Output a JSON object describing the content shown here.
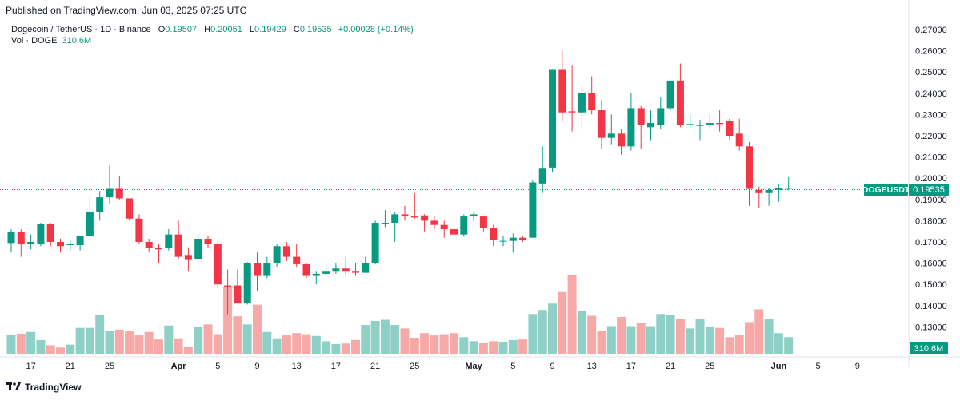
{
  "publish_line": "Published on TradingView.com, Jun 03, 2025 07:25 UTC",
  "legend": {
    "symbol": "Dogecoin / TetherUS · 1D · Binance",
    "o_label": "O",
    "o_value": "0.19507",
    "h_label": "H",
    "h_value": "0.20051",
    "l_label": "L",
    "l_value": "0.19429",
    "c_label": "C",
    "c_value": "0.19535",
    "change": "+0.00028 (+0.14%)",
    "vol_label": "Vol · DOGE",
    "vol_value": "310.6M"
  },
  "price_tag": {
    "symbol": "DOGEUSDT",
    "price": "0.19535"
  },
  "volume_tag": "310.6M",
  "footer": {
    "brand": "TradingView"
  },
  "colors": {
    "up": "#089981",
    "down": "#f23645",
    "vol_up": "#8fd0c6",
    "vol_down": "#f7a9a7"
  },
  "chart_data": {
    "type": "candlestick",
    "symbol": "DOGEUSDT",
    "y_ticks": [
      "0.27000",
      "0.26000",
      "0.25000",
      "0.24000",
      "0.23000",
      "0.22000",
      "0.21000",
      "0.20000",
      "0.19000",
      "0.18000",
      "0.17000",
      "0.16000",
      "0.15000",
      "0.14000",
      "0.13000"
    ],
    "x_ticks": [
      "17",
      "21",
      "25",
      "Apr",
      "5",
      "9",
      "13",
      "17",
      "21",
      "25",
      "May",
      "5",
      "9",
      "13",
      "17",
      "21",
      "25",
      "Jun",
      "5",
      "9"
    ],
    "ylim": [
      0.1207,
      0.2725
    ],
    "start_date": "2025-03-15",
    "candles": [
      {
        "o": 0.1695,
        "h": 0.176,
        "l": 0.165,
        "c": 0.1745
      },
      {
        "o": 0.1745,
        "h": 0.176,
        "l": 0.163,
        "c": 0.169
      },
      {
        "o": 0.169,
        "h": 0.1735,
        "l": 0.1665,
        "c": 0.17
      },
      {
        "o": 0.169,
        "h": 0.179,
        "l": 0.168,
        "c": 0.1785
      },
      {
        "o": 0.1785,
        "h": 0.179,
        "l": 0.168,
        "c": 0.17
      },
      {
        "o": 0.17,
        "h": 0.1715,
        "l": 0.165,
        "c": 0.168
      },
      {
        "o": 0.1685,
        "h": 0.171,
        "l": 0.166,
        "c": 0.169
      },
      {
        "o": 0.1685,
        "h": 0.173,
        "l": 0.166,
        "c": 0.173
      },
      {
        "o": 0.173,
        "h": 0.191,
        "l": 0.173,
        "c": 0.184
      },
      {
        "o": 0.184,
        "h": 0.194,
        "l": 0.18,
        "c": 0.191
      },
      {
        "o": 0.191,
        "h": 0.206,
        "l": 0.188,
        "c": 0.195
      },
      {
        "o": 0.195,
        "h": 0.201,
        "l": 0.19,
        "c": 0.1905
      },
      {
        "o": 0.1905,
        "h": 0.1905,
        "l": 0.1805,
        "c": 0.181
      },
      {
        "o": 0.181,
        "h": 0.183,
        "l": 0.169,
        "c": 0.17
      },
      {
        "o": 0.17,
        "h": 0.1715,
        "l": 0.165,
        "c": 0.167
      },
      {
        "o": 0.167,
        "h": 0.169,
        "l": 0.16,
        "c": 0.1665
      },
      {
        "o": 0.167,
        "h": 0.176,
        "l": 0.166,
        "c": 0.1735
      },
      {
        "o": 0.1735,
        "h": 0.18,
        "l": 0.162,
        "c": 0.163
      },
      {
        "o": 0.1635,
        "h": 0.1675,
        "l": 0.156,
        "c": 0.1615
      },
      {
        "o": 0.162,
        "h": 0.173,
        "l": 0.162,
        "c": 0.1715
      },
      {
        "o": 0.1715,
        "h": 0.173,
        "l": 0.167,
        "c": 0.169
      },
      {
        "o": 0.169,
        "h": 0.17,
        "l": 0.148,
        "c": 0.15
      },
      {
        "o": 0.1495,
        "h": 0.157,
        "l": 0.136,
        "c": 0.149
      },
      {
        "o": 0.1495,
        "h": 0.157,
        "l": 0.142,
        "c": 0.141
      },
      {
        "o": 0.141,
        "h": 0.1605,
        "l": 0.1405,
        "c": 0.16
      },
      {
        "o": 0.16,
        "h": 0.165,
        "l": 0.147,
        "c": 0.154
      },
      {
        "o": 0.154,
        "h": 0.163,
        "l": 0.153,
        "c": 0.16
      },
      {
        "o": 0.16,
        "h": 0.169,
        "l": 0.158,
        "c": 0.168
      },
      {
        "o": 0.168,
        "h": 0.17,
        "l": 0.161,
        "c": 0.163
      },
      {
        "o": 0.163,
        "h": 0.169,
        "l": 0.158,
        "c": 0.1595
      },
      {
        "o": 0.1595,
        "h": 0.16,
        "l": 0.153,
        "c": 0.154
      },
      {
        "o": 0.154,
        "h": 0.156,
        "l": 0.15,
        "c": 0.155
      },
      {
        "o": 0.155,
        "h": 0.16,
        "l": 0.1545,
        "c": 0.156
      },
      {
        "o": 0.156,
        "h": 0.16,
        "l": 0.155,
        "c": 0.1575
      },
      {
        "o": 0.1575,
        "h": 0.163,
        "l": 0.154,
        "c": 0.156
      },
      {
        "o": 0.156,
        "h": 0.16,
        "l": 0.154,
        "c": 0.1555
      },
      {
        "o": 0.1555,
        "h": 0.163,
        "l": 0.1555,
        "c": 0.16
      },
      {
        "o": 0.16,
        "h": 0.18,
        "l": 0.1595,
        "c": 0.179
      },
      {
        "o": 0.1785,
        "h": 0.185,
        "l": 0.177,
        "c": 0.179
      },
      {
        "o": 0.179,
        "h": 0.184,
        "l": 0.17,
        "c": 0.183
      },
      {
        "o": 0.183,
        "h": 0.187,
        "l": 0.18,
        "c": 0.182
      },
      {
        "o": 0.182,
        "h": 0.193,
        "l": 0.181,
        "c": 0.1815
      },
      {
        "o": 0.1825,
        "h": 0.183,
        "l": 0.175,
        "c": 0.18
      },
      {
        "o": 0.18,
        "h": 0.182,
        "l": 0.176,
        "c": 0.178
      },
      {
        "o": 0.178,
        "h": 0.18,
        "l": 0.172,
        "c": 0.176
      },
      {
        "o": 0.176,
        "h": 0.178,
        "l": 0.167,
        "c": 0.1735
      },
      {
        "o": 0.1735,
        "h": 0.183,
        "l": 0.1725,
        "c": 0.182
      },
      {
        "o": 0.182,
        "h": 0.184,
        "l": 0.18,
        "c": 0.183
      },
      {
        "o": 0.182,
        "h": 0.1825,
        "l": 0.175,
        "c": 0.1765
      },
      {
        "o": 0.1765,
        "h": 0.178,
        "l": 0.168,
        "c": 0.171
      },
      {
        "o": 0.1705,
        "h": 0.173,
        "l": 0.168,
        "c": 0.1705
      },
      {
        "o": 0.1705,
        "h": 0.174,
        "l": 0.165,
        "c": 0.172
      },
      {
        "o": 0.172,
        "h": 0.173,
        "l": 0.17,
        "c": 0.171
      },
      {
        "o": 0.172,
        "h": 0.199,
        "l": 0.172,
        "c": 0.198
      },
      {
        "o": 0.1975,
        "h": 0.215,
        "l": 0.193,
        "c": 0.2045
      },
      {
        "o": 0.205,
        "h": 0.251,
        "l": 0.203,
        "c": 0.251
      },
      {
        "o": 0.251,
        "h": 0.26,
        "l": 0.227,
        "c": 0.231
      },
      {
        "o": 0.2315,
        "h": 0.253,
        "l": 0.222,
        "c": 0.231
      },
      {
        "o": 0.231,
        "h": 0.244,
        "l": 0.223,
        "c": 0.24
      },
      {
        "o": 0.24,
        "h": 0.248,
        "l": 0.23,
        "c": 0.232
      },
      {
        "o": 0.232,
        "h": 0.237,
        "l": 0.214,
        "c": 0.219
      },
      {
        "o": 0.219,
        "h": 0.23,
        "l": 0.216,
        "c": 0.221
      },
      {
        "o": 0.221,
        "h": 0.223,
        "l": 0.211,
        "c": 0.215
      },
      {
        "o": 0.215,
        "h": 0.24,
        "l": 0.213,
        "c": 0.233
      },
      {
        "o": 0.233,
        "h": 0.234,
        "l": 0.214,
        "c": 0.225
      },
      {
        "o": 0.224,
        "h": 0.232,
        "l": 0.218,
        "c": 0.226
      },
      {
        "o": 0.225,
        "h": 0.238,
        "l": 0.223,
        "c": 0.233
      },
      {
        "o": 0.233,
        "h": 0.246,
        "l": 0.232,
        "c": 0.246
      },
      {
        "o": 0.246,
        "h": 0.254,
        "l": 0.224,
        "c": 0.225
      },
      {
        "o": 0.225,
        "h": 0.23,
        "l": 0.224,
        "c": 0.2255
      },
      {
        "o": 0.225,
        "h": 0.2275,
        "l": 0.218,
        "c": 0.225
      },
      {
        "o": 0.225,
        "h": 0.23,
        "l": 0.223,
        "c": 0.226
      },
      {
        "o": 0.226,
        "h": 0.232,
        "l": 0.222,
        "c": 0.2255
      },
      {
        "o": 0.227,
        "h": 0.228,
        "l": 0.218,
        "c": 0.22
      },
      {
        "o": 0.221,
        "h": 0.228,
        "l": 0.213,
        "c": 0.215
      },
      {
        "o": 0.215,
        "h": 0.217,
        "l": 0.187,
        "c": 0.195
      },
      {
        "o": 0.1945,
        "h": 0.196,
        "l": 0.186,
        "c": 0.193
      },
      {
        "o": 0.193,
        "h": 0.1955,
        "l": 0.187,
        "c": 0.1945
      },
      {
        "o": 0.1945,
        "h": 0.197,
        "l": 0.189,
        "c": 0.1955
      },
      {
        "o": 0.1951,
        "h": 0.2005,
        "l": 0.1943,
        "c": 0.1954
      }
    ],
    "volume": [
      34,
      36,
      39,
      25,
      16,
      12,
      17,
      46,
      46,
      69,
      41,
      43,
      40,
      33,
      39,
      26,
      50,
      28,
      14,
      48,
      52,
      35,
      118,
      66,
      52,
      86,
      39,
      28,
      33,
      37,
      35,
      32,
      23,
      18,
      19,
      25,
      51,
      58,
      60,
      51,
      45,
      29,
      37,
      33,
      35,
      37,
      30,
      23,
      20,
      23,
      22,
      25,
      26,
      70,
      77,
      88,
      108,
      138,
      75,
      67,
      41,
      49,
      65,
      49,
      54,
      49,
      70,
      69,
      62,
      45,
      61,
      48,
      46,
      30,
      34,
      56,
      78,
      61,
      37,
      30
    ],
    "volume_units": "relative"
  }
}
